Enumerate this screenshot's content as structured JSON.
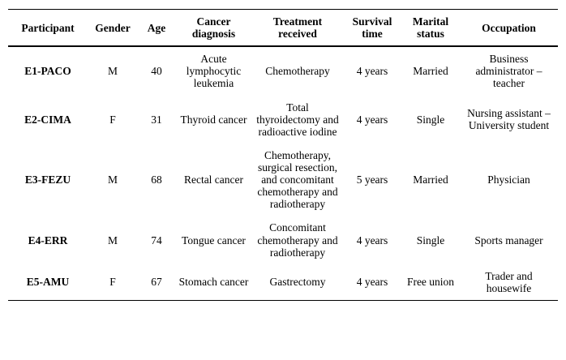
{
  "colors": {
    "background": "#ffffff",
    "text": "#000000",
    "rule": "#000000"
  },
  "table": {
    "headers": {
      "participant": "Participant",
      "gender": "Gender",
      "age": "Age",
      "diagnosis": "Cancer\ndiagnosis",
      "treatment": "Treatment\nreceived",
      "survival": "Survival\ntime",
      "marital": "Marital\nstatus",
      "occupation": "Occupation"
    },
    "rows": [
      {
        "participant": "E1-PACO",
        "gender": "M",
        "age": "40",
        "diagnosis": "Acute lymphocytic leukemia",
        "treatment": "Chemotherapy",
        "survival": "4 years",
        "marital": "Married",
        "occupation": "Business administrator – teacher"
      },
      {
        "participant": "E2-CIMA",
        "gender": "F",
        "age": "31",
        "diagnosis": "Thyroid cancer",
        "treatment": "Total thyroidectomy and radioactive iodine",
        "survival": "4 years",
        "marital": "Single",
        "occupation": "Nursing assistant – University student"
      },
      {
        "participant": "E3-FEZU",
        "gender": "M",
        "age": "68",
        "diagnosis": "Rectal cancer",
        "treatment": "Chemotherapy, surgical resection, and concomitant chemotherapy and radiotherapy",
        "survival": "5 years",
        "marital": "Married",
        "occupation": "Physician"
      },
      {
        "participant": "E4-ERR",
        "gender": "M",
        "age": "74",
        "diagnosis": "Tongue cancer",
        "treatment": "Concomitant chemotherapy and radiotherapy",
        "survival": "4 years",
        "marital": "Single",
        "occupation": "Sports manager"
      },
      {
        "participant": "E5-AMU",
        "gender": "F",
        "age": "67",
        "diagnosis": "Stomach cancer",
        "treatment": "Gastrectomy",
        "survival": "4 years",
        "marital": "Free union",
        "occupation": "Trader and housewife"
      }
    ]
  }
}
